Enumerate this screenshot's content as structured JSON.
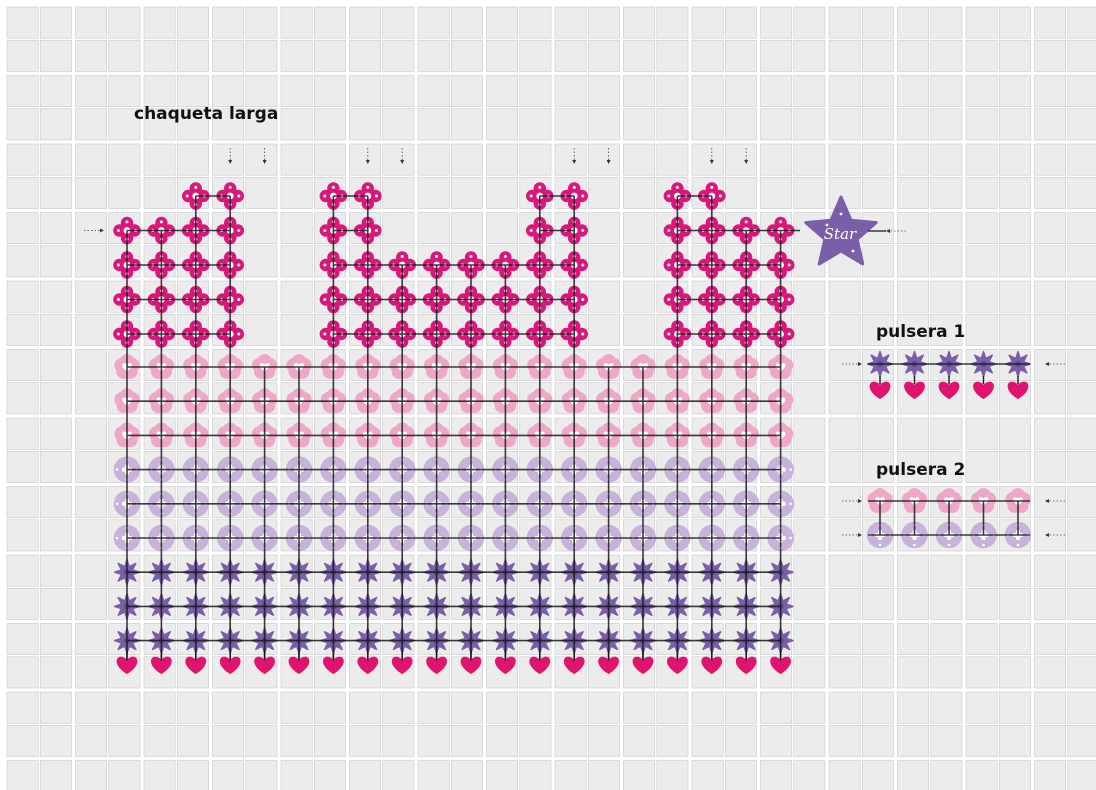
{
  "labels": {
    "jacket": "chaqueta larga",
    "bracelet1": "pulsera 1",
    "bracelet2": "pulsera 2",
    "star_text": "Star"
  },
  "colors": {
    "grid_fill": "#ececec",
    "grid_cell_stroke": "#c9c9c9",
    "magenta": "#d9177a",
    "pink": "#eea6c9",
    "pink_dark": "#e58db8",
    "lilac": "#c8b1da",
    "purple": "#7a5ea8",
    "heart": "#e0136f",
    "connector": "#1a1a1a"
  },
  "icons": {
    "magenta": "quatrefoil-flower-icon",
    "pink": "flower-heart-icon",
    "lilac": "ring-disc-icon",
    "purple": "spiky-flower-icon",
    "heart": "heart-charm-icon",
    "star": "star-charm-icon"
  },
  "jacket": {
    "columns": 20,
    "magenta_tops": [
      4,
      4,
      5,
      5,
      0,
      0,
      5,
      5,
      3,
      3,
      3,
      3,
      5,
      5,
      0,
      0,
      5,
      5,
      4,
      4
    ],
    "body_rows": [
      "pink",
      "pink",
      "pink",
      "lilac",
      "lilac",
      "lilac",
      "purple",
      "purple",
      "purple"
    ],
    "bottom_charm": "heart",
    "attach_arrow_columns": [
      3,
      4,
      7,
      8,
      13,
      14,
      17,
      18
    ]
  },
  "bracelet1": {
    "rows": [
      "purple"
    ],
    "count": 5,
    "charm": "heart"
  },
  "bracelet2": {
    "rows": [
      "pink",
      "lilac"
    ],
    "count": 5
  }
}
